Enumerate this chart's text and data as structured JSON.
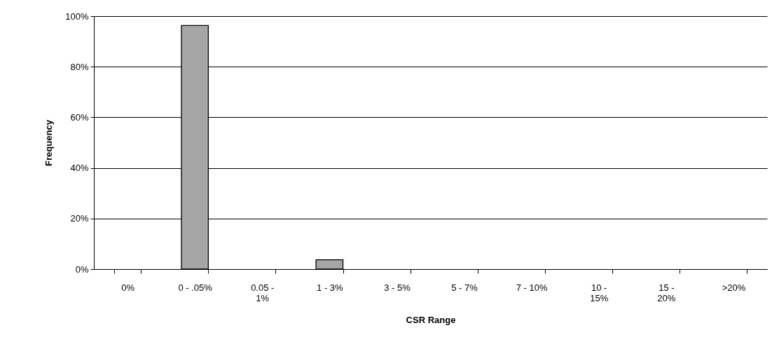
{
  "chart_data": {
    "type": "bar",
    "xlabel": "CSR Range",
    "ylabel": "Frequency",
    "categories": [
      "0%",
      "0 - .05%",
      "0.05 - 1%",
      "1 - 3%",
      "3 - 5%",
      "5 - 7%",
      "7 - 10%",
      "10 - 15%",
      "15 - 20%",
      ">20%"
    ],
    "values": [
      0,
      96.3,
      0,
      3.7,
      0,
      0,
      0,
      0,
      0,
      0
    ],
    "color": "#a6a6a6",
    "ylim": [
      0,
      100
    ],
    "yticks": [
      {
        "value": 0,
        "label": "0%"
      },
      {
        "value": 20,
        "label": "20%"
      },
      {
        "value": 40,
        "label": "40%"
      },
      {
        "value": 60,
        "label": "60%"
      },
      {
        "value": 80,
        "label": "80%"
      },
      {
        "value": 100,
        "label": "100%"
      }
    ],
    "grid": "y"
  }
}
